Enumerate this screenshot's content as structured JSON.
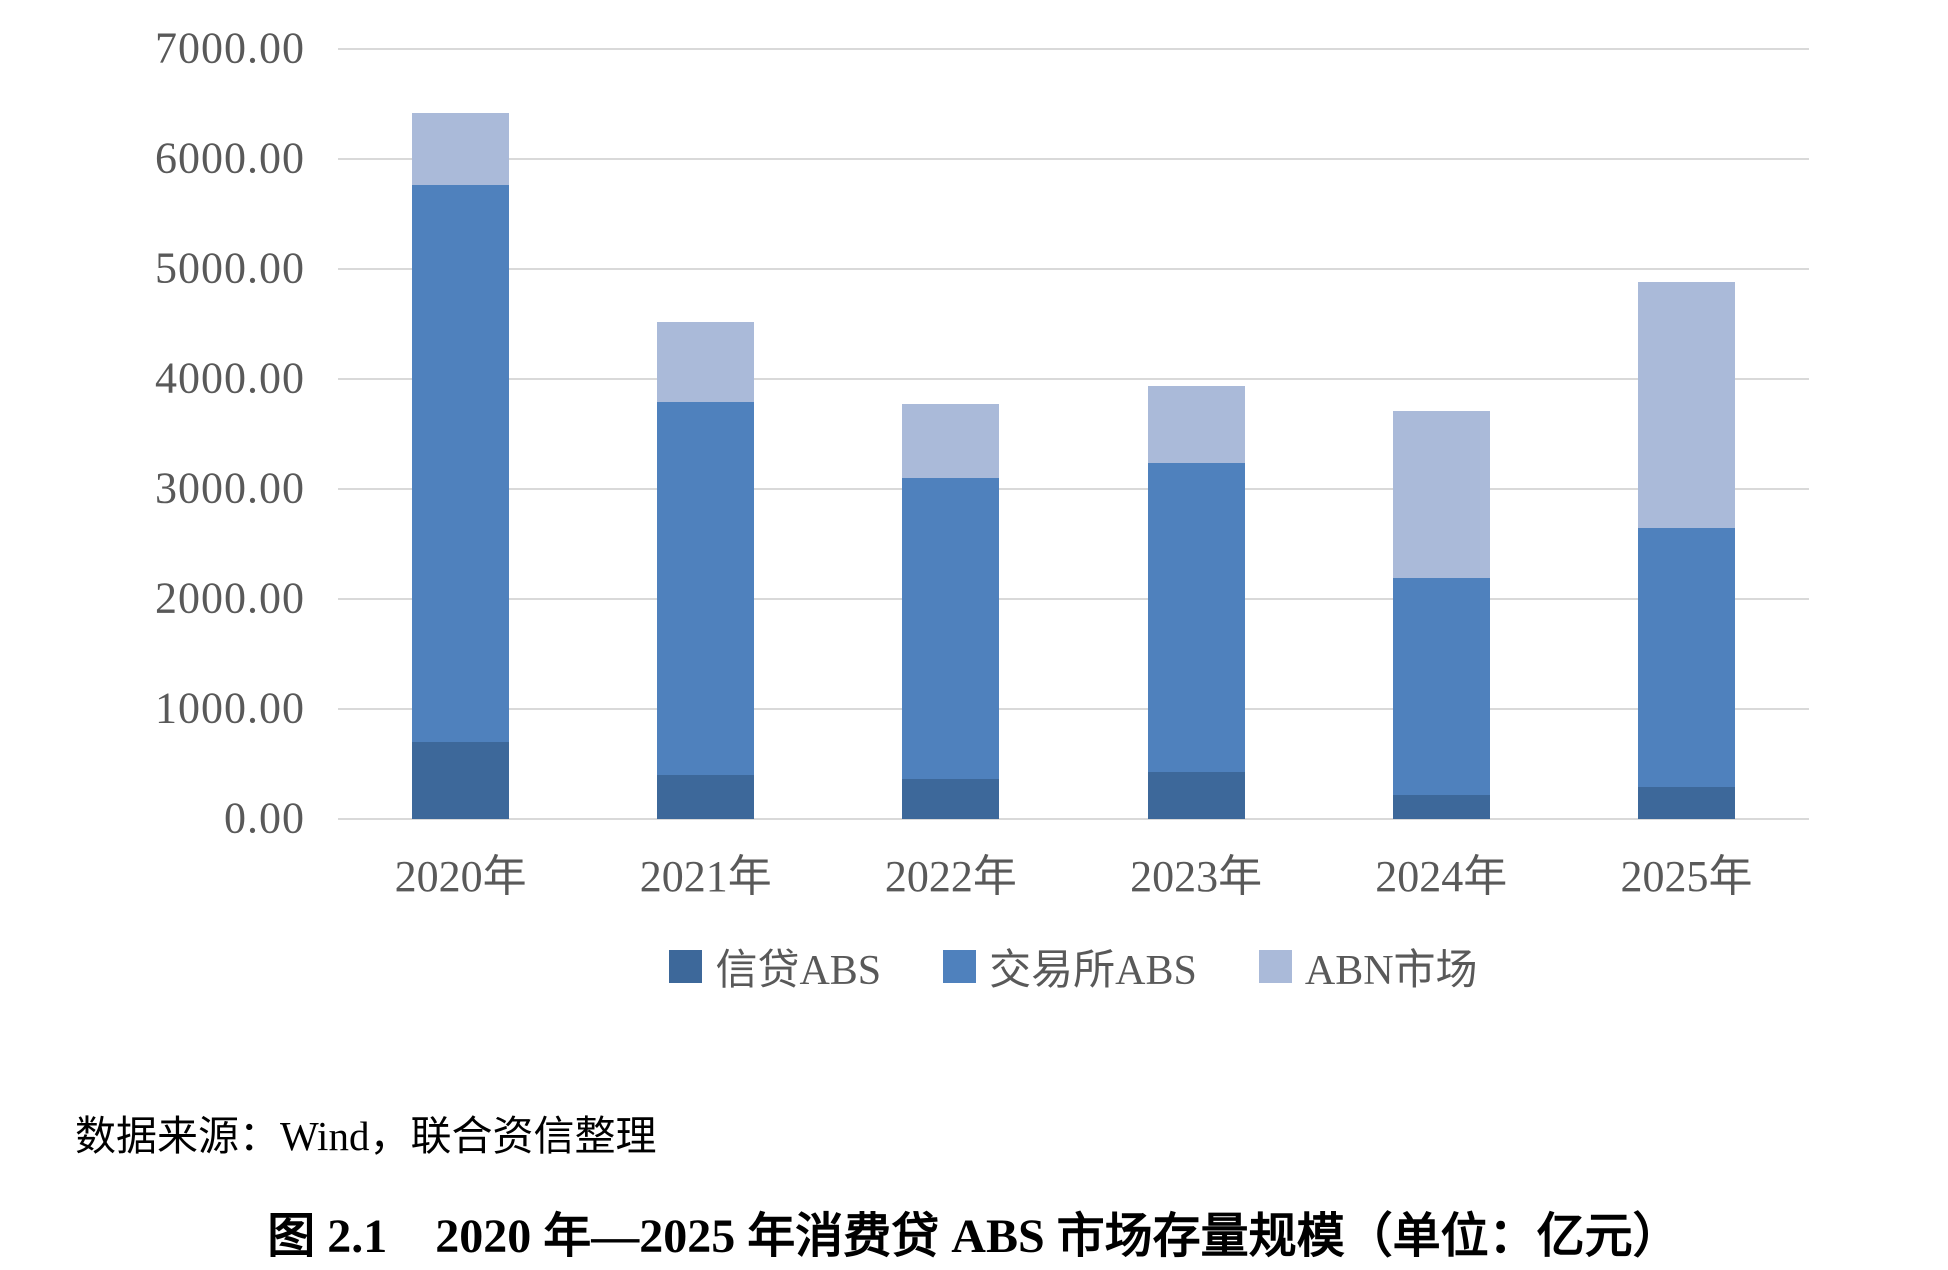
{
  "chart_data": {
    "type": "bar",
    "stacked": true,
    "title": "",
    "categories": [
      "2020年",
      "2021年",
      "2022年",
      "2023年",
      "2024年",
      "2025年"
    ],
    "series": [
      {
        "name": "信贷ABS",
        "color": "#3D689A",
        "values": [
          700,
          400,
          360,
          430,
          220,
          290
        ]
      },
      {
        "name": "交易所ABS",
        "color": "#4F81BD",
        "values": [
          5060,
          3390,
          2740,
          2810,
          1970,
          2360
        ]
      },
      {
        "name": "ABN市场",
        "color": "#AABAD9",
        "values": [
          660,
          730,
          670,
          700,
          1520,
          2230
        ]
      }
    ],
    "totals": [
      6420,
      4520,
      3770,
      3940,
      3710,
      4880
    ],
    "ylim": [
      0,
      7000
    ],
    "ytick_step": 1000,
    "ytick_labels": [
      "0.00",
      "1000.00",
      "2000.00",
      "3000.00",
      "4000.00",
      "5000.00",
      "6000.00",
      "7000.00"
    ],
    "grid": true,
    "gridline_color": "#D9D9D9",
    "axis_label_color": "#595959",
    "legend_position": "bottom"
  },
  "source_note": "数据来源：Wind，联合资信整理",
  "caption": "图 2.1　2020 年—2025 年消费贷 ABS 市场存量规模（单位：亿元）"
}
